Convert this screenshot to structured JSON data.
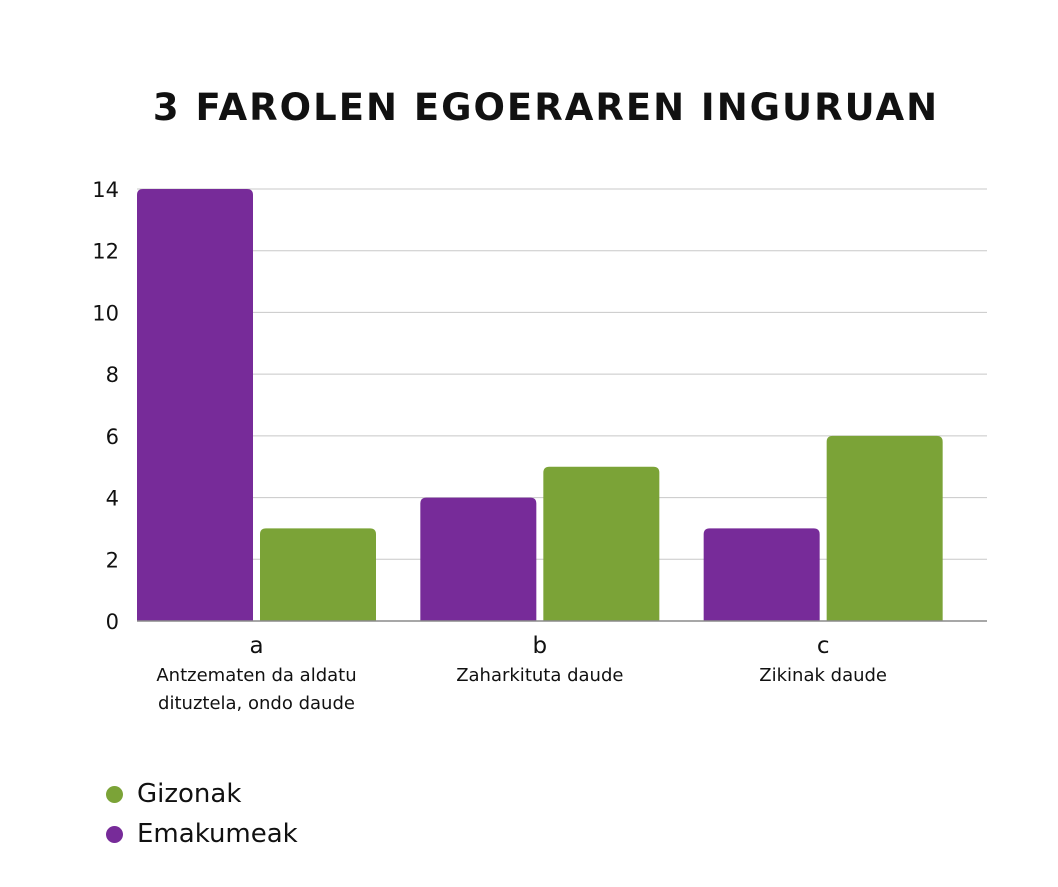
{
  "chart_data": {
    "type": "bar",
    "title": "3 FAROLEN EGOERAREN INGURUAN",
    "categories": [
      "a",
      "b",
      "c"
    ],
    "category_descriptions": [
      [
        "Antzematen da aldatu",
        "dituztela, ondo daude"
      ],
      [
        "Zaharkituta daude"
      ],
      [
        "Zikinak daude"
      ]
    ],
    "series": [
      {
        "name": "Emakumeak",
        "color": "#772b99",
        "values": [
          14,
          4,
          3
        ]
      },
      {
        "name": "Gizonak",
        "color": "#7ba337",
        "values": [
          3,
          5,
          6
        ]
      }
    ],
    "y_ticks": [
      "0",
      "2",
      "4",
      "6",
      "8",
      "10",
      "12",
      "14"
    ],
    "ylim": [
      0,
      14
    ],
    "grid": true,
    "legend_position": "bottom-left",
    "legend": [
      {
        "label": "Gizonak",
        "color": "#7ba337"
      },
      {
        "label": "Emakumeak",
        "color": "#772b99"
      }
    ]
  }
}
